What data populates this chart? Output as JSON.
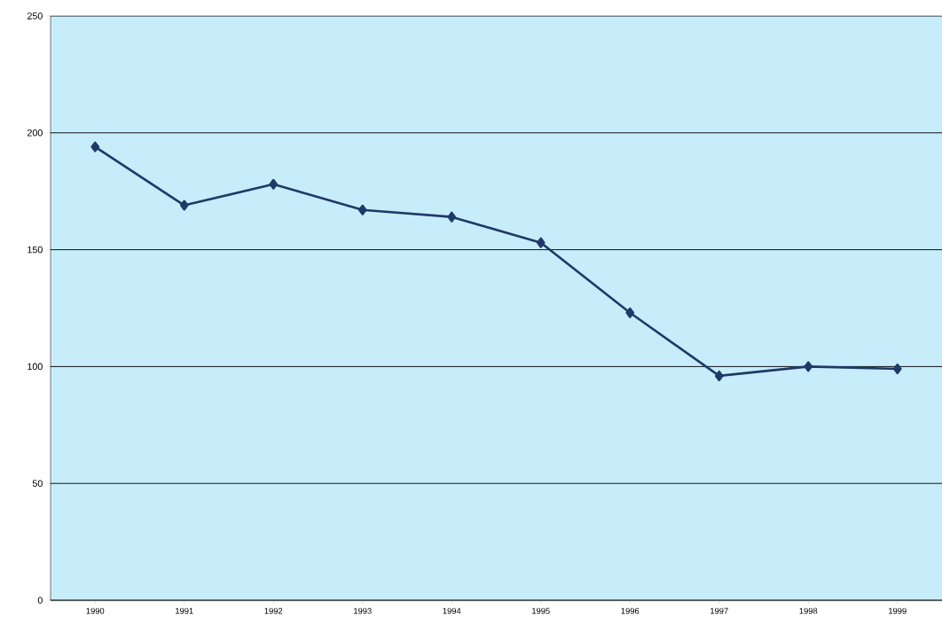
{
  "chart_data": {
    "type": "line",
    "categories": [
      "1990",
      "1991",
      "1992",
      "1993",
      "1994",
      "1995",
      "1996",
      "1997",
      "1998",
      "1999"
    ],
    "series": [
      {
        "color": "#1f3a68",
        "values": [
          194,
          169,
          178,
          167,
          164,
          153,
          123,
          96,
          100,
          99
        ]
      }
    ],
    "ylim": [
      0,
      250
    ],
    "yticks": [
      0,
      50,
      100,
      150,
      200,
      250
    ],
    "grid": "y",
    "marker": "diamond",
    "line_style": "solid"
  }
}
